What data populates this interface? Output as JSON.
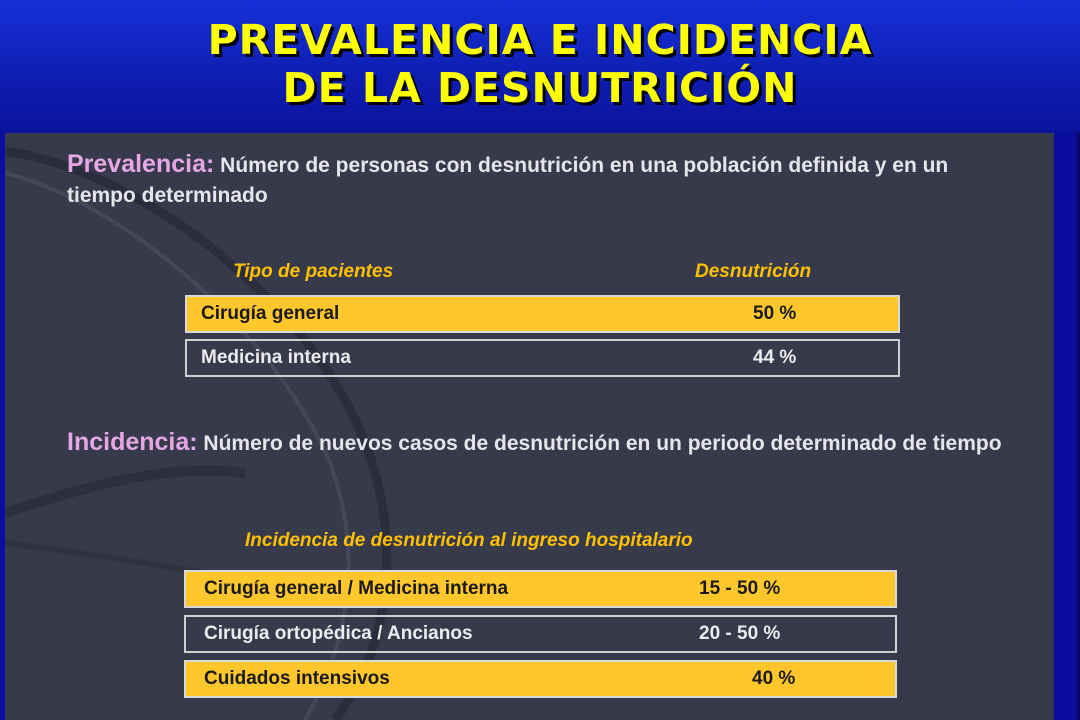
{
  "title": {
    "line1": "PREVALENCIA E INCIDENCIA",
    "line2": "DE LA DESNUTRICIÓN"
  },
  "prevalencia": {
    "term": "Prevalencia:",
    "definition": " Número de personas con desnutrición  en una población definida y en un tiempo determinado",
    "table": {
      "col_patient": "Tipo  de pacientes",
      "col_value": "Desnutrición",
      "rows": [
        {
          "label": "Cirugía general",
          "value": "50 %"
        },
        {
          "label": "Medicina interna",
          "value": "44 %"
        }
      ]
    }
  },
  "incidencia": {
    "term": "Incidencia:",
    "definition": " Número de nuevos casos de desnutrición en un periodo determinado de tiempo",
    "table": {
      "caption": "Incidencia de desnutrición al ingreso hospitalario",
      "rows": [
        {
          "label": "Cirugía general / Medicina interna",
          "value": "15 - 50 %"
        },
        {
          "label": "Cirugía ortopédica / Ancianos",
          "value": "20 - 50 %"
        },
        {
          "label": "Cuidados intensivos",
          "value": "40 %"
        }
      ]
    }
  },
  "colors": {
    "title_text": "#ffff00",
    "header_blue": "#1530d8",
    "slide_background": "#373a4b",
    "row_highlight": "#ffc72c",
    "column_heading": "#ffc000",
    "term_pink": "#e6a7e6"
  }
}
